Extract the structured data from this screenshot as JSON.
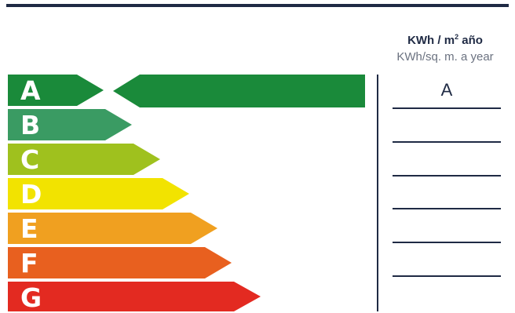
{
  "header": {
    "unit_es": "KWh / m",
    "unit_es_sup": "2",
    "unit_es_suffix": " año",
    "unit_en": "KWh/sq. m. a year"
  },
  "scale": [
    {
      "letter": "A",
      "color": "#1a8a3a"
    },
    {
      "letter": "B",
      "color": "#3a9b63"
    },
    {
      "letter": "C",
      "color": "#9fc11e"
    },
    {
      "letter": "D",
      "color": "#f2e300"
    },
    {
      "letter": "E",
      "color": "#f0a020"
    },
    {
      "letter": "F",
      "color": "#e8601f"
    },
    {
      "letter": "G",
      "color": "#e32a21"
    }
  ],
  "rating": {
    "letter": "A",
    "color": "#1a8a3a"
  }
}
